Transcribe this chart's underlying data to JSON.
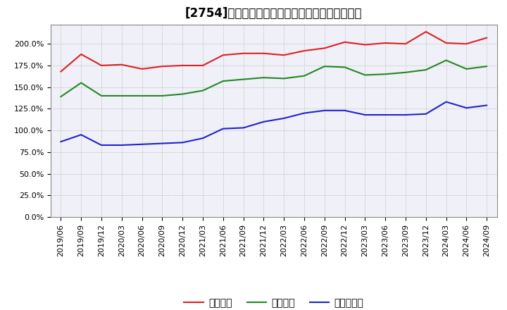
{
  "title": "[2754]　流動比率、当座比率、現預金比率の推移",
  "x_labels": [
    "2019/06",
    "2019/09",
    "2019/12",
    "2020/03",
    "2020/06",
    "2020/09",
    "2020/12",
    "2021/03",
    "2021/06",
    "2021/09",
    "2021/12",
    "2022/03",
    "2022/06",
    "2022/09",
    "2022/12",
    "2023/03",
    "2023/06",
    "2023/09",
    "2023/12",
    "2024/03",
    "2024/06",
    "2024/09"
  ],
  "ryudo": [
    1.68,
    1.88,
    1.75,
    1.76,
    1.71,
    1.74,
    1.75,
    1.75,
    1.87,
    1.89,
    1.89,
    1.87,
    1.92,
    1.95,
    2.02,
    1.99,
    2.01,
    2.0,
    2.14,
    2.01,
    2.0,
    2.07
  ],
  "toza": [
    1.39,
    1.55,
    1.4,
    1.4,
    1.4,
    1.4,
    1.42,
    1.46,
    1.57,
    1.59,
    1.61,
    1.6,
    1.63,
    1.74,
    1.73,
    1.64,
    1.65,
    1.67,
    1.7,
    1.81,
    1.71,
    1.74
  ],
  "genkin": [
    0.87,
    0.95,
    0.83,
    0.83,
    0.84,
    0.85,
    0.86,
    0.91,
    1.02,
    1.03,
    1.1,
    1.14,
    1.2,
    1.23,
    1.23,
    1.18,
    1.18,
    1.18,
    1.19,
    1.33,
    1.26,
    1.29
  ],
  "line_colors": [
    "#dd2222",
    "#228822",
    "#2222cc"
  ],
  "legend_labels": [
    "流動比率",
    "当座比率",
    "現預金比率"
  ],
  "background_color": "#ffffff",
  "plot_bg_color": "#f0f0f8",
  "grid_color": "#888888",
  "title_fontsize": 12,
  "tick_fontsize": 8,
  "legend_fontsize": 10,
  "ytick_vals": [
    0.0,
    0.25,
    0.5,
    0.75,
    1.0,
    1.25,
    1.5,
    1.75,
    2.0
  ],
  "ytick_labels": [
    "0.0%",
    "25.0%",
    "50.0%",
    "75.0%",
    "100.0%",
    "125.0%",
    "150.0%",
    "175.0%",
    "200.0%"
  ],
  "ylim": [
    0.0,
    2.22
  ]
}
